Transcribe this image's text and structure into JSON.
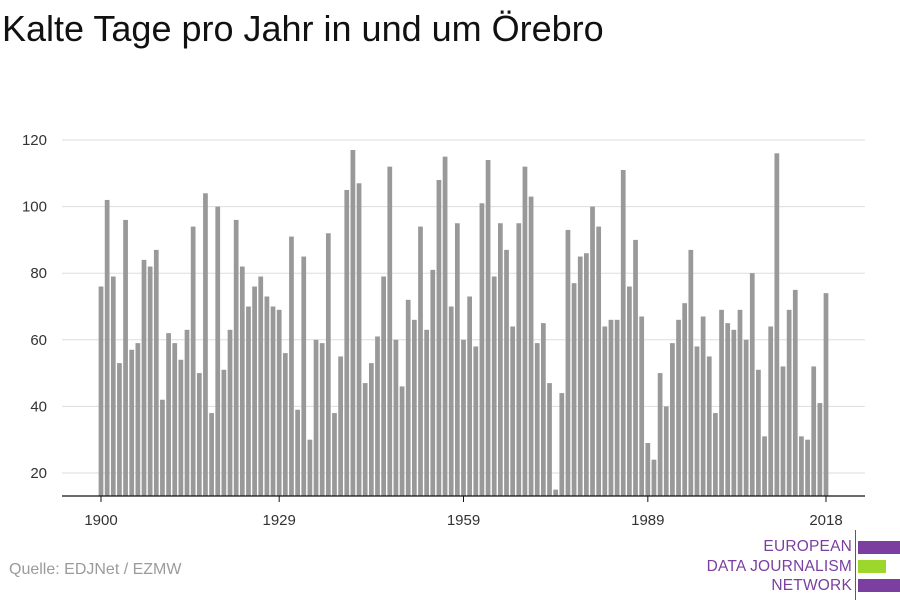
{
  "chart_data": {
    "type": "bar",
    "title": "Kalte Tage pro Jahr in und um Örebro",
    "x_start": 1900,
    "x_end": 2018,
    "x_ticks": [
      "1900",
      "1929",
      "1959",
      "1989",
      "2018"
    ],
    "y_ticks": [
      "20",
      "40",
      "60",
      "80",
      "100",
      "120"
    ],
    "ylim": [
      13,
      120
    ],
    "grid": true,
    "values": [
      76,
      102,
      79,
      53,
      96,
      57,
      59,
      84,
      82,
      87,
      42,
      62,
      59,
      54,
      63,
      94,
      50,
      104,
      38,
      100,
      51,
      63,
      96,
      82,
      70,
      76,
      79,
      73,
      70,
      69,
      56,
      91,
      39,
      85,
      30,
      60,
      59,
      92,
      38,
      55,
      105,
      117,
      107,
      47,
      53,
      61,
      79,
      112,
      60,
      46,
      72,
      66,
      94,
      63,
      81,
      108,
      115,
      70,
      95,
      60,
      73,
      58,
      101,
      114,
      79,
      95,
      87,
      64,
      95,
      112,
      103,
      59,
      65,
      47,
      15,
      44,
      93,
      77,
      85,
      86,
      100,
      94,
      64,
      66,
      66,
      111,
      76,
      90,
      67,
      29,
      24,
      50,
      40,
      59,
      66,
      71,
      87,
      58,
      67,
      55,
      38,
      69,
      65,
      63,
      69,
      60,
      80,
      51,
      31,
      64,
      116,
      52,
      69,
      75,
      31,
      30,
      52,
      41,
      74
    ],
    "bar_color": "#999999",
    "source": "Quelle: EDJNet / EZMW"
  },
  "logo": {
    "lines": [
      "EUROPEAN",
      "DATA JOURNALISM",
      "NETWORK"
    ],
    "purple": "#7b3fa0",
    "green": "#9dd62d"
  }
}
